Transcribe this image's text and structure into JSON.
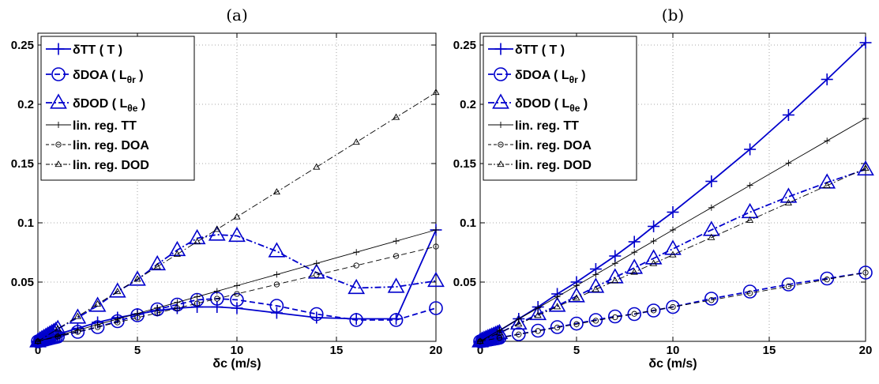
{
  "chart_data": [
    {
      "type": "line",
      "title": "(a)",
      "xlabel": "δc (m/s)",
      "ylabel": "",
      "xlim": [
        0,
        20
      ],
      "ylim": [
        0,
        0.26
      ],
      "xticks": [
        0,
        5,
        10,
        15,
        20
      ],
      "yticks": [
        0.05,
        0.1,
        0.15,
        0.2,
        0.25
      ],
      "xtick_labels": [
        "0",
        "5",
        "10",
        "15",
        "20"
      ],
      "ytick_labels": [
        "0.05",
        "0.1",
        "0.15",
        "0.2",
        "0.25"
      ],
      "grid": true,
      "legend_position": "top-left",
      "series": [
        {
          "name": "δTT ( T )",
          "marker": "plus",
          "style": "solid",
          "color": "#0000cc",
          "x": [
            0,
            0.1,
            0.2,
            0.3,
            0.4,
            0.5,
            0.6,
            0.7,
            0.8,
            0.9,
            1,
            2,
            3,
            4,
            5,
            6,
            7,
            8,
            9,
            10,
            12,
            14,
            16,
            18,
            20
          ],
          "y": [
            0,
            0.0006,
            0.0012,
            0.0018,
            0.0024,
            0.003,
            0.0036,
            0.0042,
            0.0048,
            0.0054,
            0.006,
            0.011,
            0.016,
            0.02,
            0.023,
            0.026,
            0.028,
            0.029,
            0.029,
            0.028,
            0.024,
            0.02,
            0.019,
            0.019,
            0.094
          ]
        },
        {
          "name": "δDOA ( L",
          "sub": "θr",
          "name_end": " )",
          "marker": "circle",
          "style": "dashed",
          "color": "#0000cc",
          "x": [
            0,
            0.1,
            0.2,
            0.3,
            0.4,
            0.5,
            0.6,
            0.7,
            0.8,
            0.9,
            1,
            2,
            3,
            4,
            5,
            6,
            7,
            8,
            9,
            10,
            12,
            14,
            16,
            18,
            20
          ],
          "y": [
            0,
            0.0004,
            0.0008,
            0.0012,
            0.0016,
            0.002,
            0.0024,
            0.0028,
            0.0032,
            0.0036,
            0.004,
            0.008,
            0.012,
            0.017,
            0.022,
            0.027,
            0.031,
            0.035,
            0.036,
            0.035,
            0.03,
            0.023,
            0.018,
            0.018,
            0.028
          ]
        },
        {
          "name": "δDOD  ( L",
          "sub": "θe",
          "name_end": " )",
          "marker": "triangle",
          "style": "dashdot",
          "color": "#0000cc",
          "x": [
            0,
            0.1,
            0.2,
            0.3,
            0.4,
            0.5,
            0.6,
            0.7,
            0.8,
            0.9,
            1,
            2,
            3,
            4,
            5,
            6,
            7,
            8,
            9,
            10,
            12,
            14,
            16,
            18,
            20
          ],
          "y": [
            0,
            0.001,
            0.002,
            0.003,
            0.004,
            0.005,
            0.006,
            0.007,
            0.008,
            0.009,
            0.0105,
            0.02,
            0.03,
            0.042,
            0.052,
            0.065,
            0.077,
            0.087,
            0.09,
            0.089,
            0.076,
            0.058,
            0.045,
            0.046,
            0.051
          ]
        },
        {
          "name": "lin. reg. TT",
          "marker": "plus",
          "style": "solid",
          "color": "#000000",
          "small": true,
          "x": [
            0,
            1,
            2,
            3,
            4,
            5,
            6,
            7,
            8,
            9,
            10,
            12,
            14,
            16,
            18,
            20
          ],
          "y": [
            0,
            0.0047,
            0.0094,
            0.0141,
            0.0188,
            0.0235,
            0.0282,
            0.0329,
            0.0376,
            0.0423,
            0.047,
            0.0564,
            0.0658,
            0.0752,
            0.0846,
            0.094
          ]
        },
        {
          "name": "lin. reg. DOA",
          "marker": "circle",
          "style": "dashed",
          "color": "#000000",
          "small": true,
          "x": [
            0,
            1,
            2,
            3,
            4,
            5,
            6,
            7,
            8,
            9,
            10,
            12,
            14,
            16,
            18,
            20
          ],
          "y": [
            0,
            0.004,
            0.008,
            0.012,
            0.016,
            0.02,
            0.024,
            0.028,
            0.032,
            0.036,
            0.04,
            0.048,
            0.056,
            0.064,
            0.072,
            0.08
          ]
        },
        {
          "name": "lin. reg. DOD",
          "marker": "triangle",
          "style": "dashdot",
          "color": "#000000",
          "small": true,
          "x": [
            0,
            1,
            2,
            3,
            4,
            5,
            6,
            7,
            8,
            9,
            10,
            12,
            14,
            16,
            18,
            20
          ],
          "y": [
            0,
            0.0105,
            0.021,
            0.0315,
            0.042,
            0.0525,
            0.063,
            0.0735,
            0.084,
            0.0945,
            0.105,
            0.126,
            0.147,
            0.168,
            0.189,
            0.21
          ]
        }
      ]
    },
    {
      "type": "line",
      "title": "(b)",
      "xlabel": "δc (m/s)",
      "ylabel": "",
      "xlim": [
        0,
        20
      ],
      "ylim": [
        0,
        0.26
      ],
      "xticks": [
        0,
        5,
        10,
        15,
        20
      ],
      "yticks": [
        0.05,
        0.1,
        0.15,
        0.2,
        0.25
      ],
      "xtick_labels": [
        "0",
        "5",
        "10",
        "15",
        "20"
      ],
      "ytick_labels": [
        "0.05",
        "0.1",
        "0.15",
        "0.2",
        "0.25"
      ],
      "grid": true,
      "legend_position": "top-left",
      "series": [
        {
          "name": "δTT ( T )",
          "marker": "plus",
          "style": "solid",
          "color": "#0000cc",
          "x": [
            0,
            0.1,
            0.2,
            0.3,
            0.4,
            0.5,
            0.6,
            0.7,
            0.8,
            0.9,
            1,
            2,
            3,
            4,
            5,
            6,
            7,
            8,
            9,
            10,
            12,
            14,
            16,
            18,
            20
          ],
          "y": [
            0,
            0.0009,
            0.0018,
            0.0027,
            0.0036,
            0.0045,
            0.0054,
            0.0063,
            0.0072,
            0.0081,
            0.009,
            0.019,
            0.029,
            0.04,
            0.05,
            0.061,
            0.072,
            0.084,
            0.097,
            0.109,
            0.135,
            0.162,
            0.191,
            0.221,
            0.252
          ]
        },
        {
          "name": "δDOA ( L",
          "sub": "θr",
          "name_end": " )",
          "marker": "circle",
          "style": "dashed",
          "color": "#0000cc",
          "x": [
            0,
            0.1,
            0.2,
            0.3,
            0.4,
            0.5,
            0.6,
            0.7,
            0.8,
            0.9,
            1,
            2,
            3,
            4,
            5,
            6,
            7,
            8,
            9,
            10,
            12,
            14,
            16,
            18,
            20
          ],
          "y": [
            0,
            0.0003,
            0.0006,
            0.0009,
            0.0012,
            0.0015,
            0.0018,
            0.0021,
            0.0024,
            0.0027,
            0.003,
            0.006,
            0.009,
            0.012,
            0.015,
            0.018,
            0.021,
            0.023,
            0.026,
            0.029,
            0.036,
            0.042,
            0.048,
            0.053,
            0.058
          ]
        },
        {
          "name": "δDOD  ( L",
          "sub": "θe",
          "name_end": " )",
          "marker": "triangle",
          "style": "dashdot",
          "color": "#0000cc",
          "x": [
            0,
            0.1,
            0.2,
            0.3,
            0.4,
            0.5,
            0.6,
            0.7,
            0.8,
            0.9,
            1,
            2,
            3,
            4,
            5,
            6,
            7,
            8,
            9,
            10,
            12,
            14,
            16,
            18,
            20
          ],
          "y": [
            0,
            0.0007,
            0.0014,
            0.0021,
            0.0028,
            0.0035,
            0.0042,
            0.0049,
            0.0056,
            0.0063,
            0.007,
            0.015,
            0.023,
            0.03,
            0.038,
            0.046,
            0.054,
            0.062,
            0.07,
            0.078,
            0.094,
            0.109,
            0.122,
            0.134,
            0.145
          ]
        },
        {
          "name": "lin. reg. TT",
          "marker": "plus",
          "style": "solid",
          "color": "#000000",
          "small": true,
          "x": [
            0,
            1,
            2,
            3,
            4,
            5,
            6,
            7,
            8,
            9,
            10,
            12,
            14,
            16,
            18,
            20
          ],
          "y": [
            0,
            0.0094,
            0.0188,
            0.0282,
            0.0376,
            0.047,
            0.0564,
            0.0658,
            0.0752,
            0.0846,
            0.094,
            0.1128,
            0.1316,
            0.1504,
            0.1692,
            0.188
          ]
        },
        {
          "name": "lin. reg. DOA",
          "marker": "circle",
          "style": "dashed",
          "color": "#000000",
          "small": true,
          "x": [
            0,
            1,
            2,
            3,
            4,
            5,
            6,
            7,
            8,
            9,
            10,
            12,
            14,
            16,
            18,
            20
          ],
          "y": [
            0,
            0.0029,
            0.0058,
            0.0087,
            0.0116,
            0.0145,
            0.0174,
            0.0203,
            0.0232,
            0.0261,
            0.029,
            0.0348,
            0.0406,
            0.0464,
            0.0522,
            0.058
          ]
        },
        {
          "name": "lin. reg. DOD",
          "marker": "triangle",
          "style": "dashdot",
          "color": "#000000",
          "small": true,
          "x": [
            0,
            1,
            2,
            3,
            4,
            5,
            6,
            7,
            8,
            9,
            10,
            12,
            14,
            16,
            18,
            20
          ],
          "y": [
            0,
            0.0073,
            0.0146,
            0.0219,
            0.0292,
            0.0365,
            0.0438,
            0.0511,
            0.0584,
            0.0657,
            0.073,
            0.0876,
            0.1022,
            0.1168,
            0.1314,
            0.146
          ]
        }
      ]
    }
  ]
}
